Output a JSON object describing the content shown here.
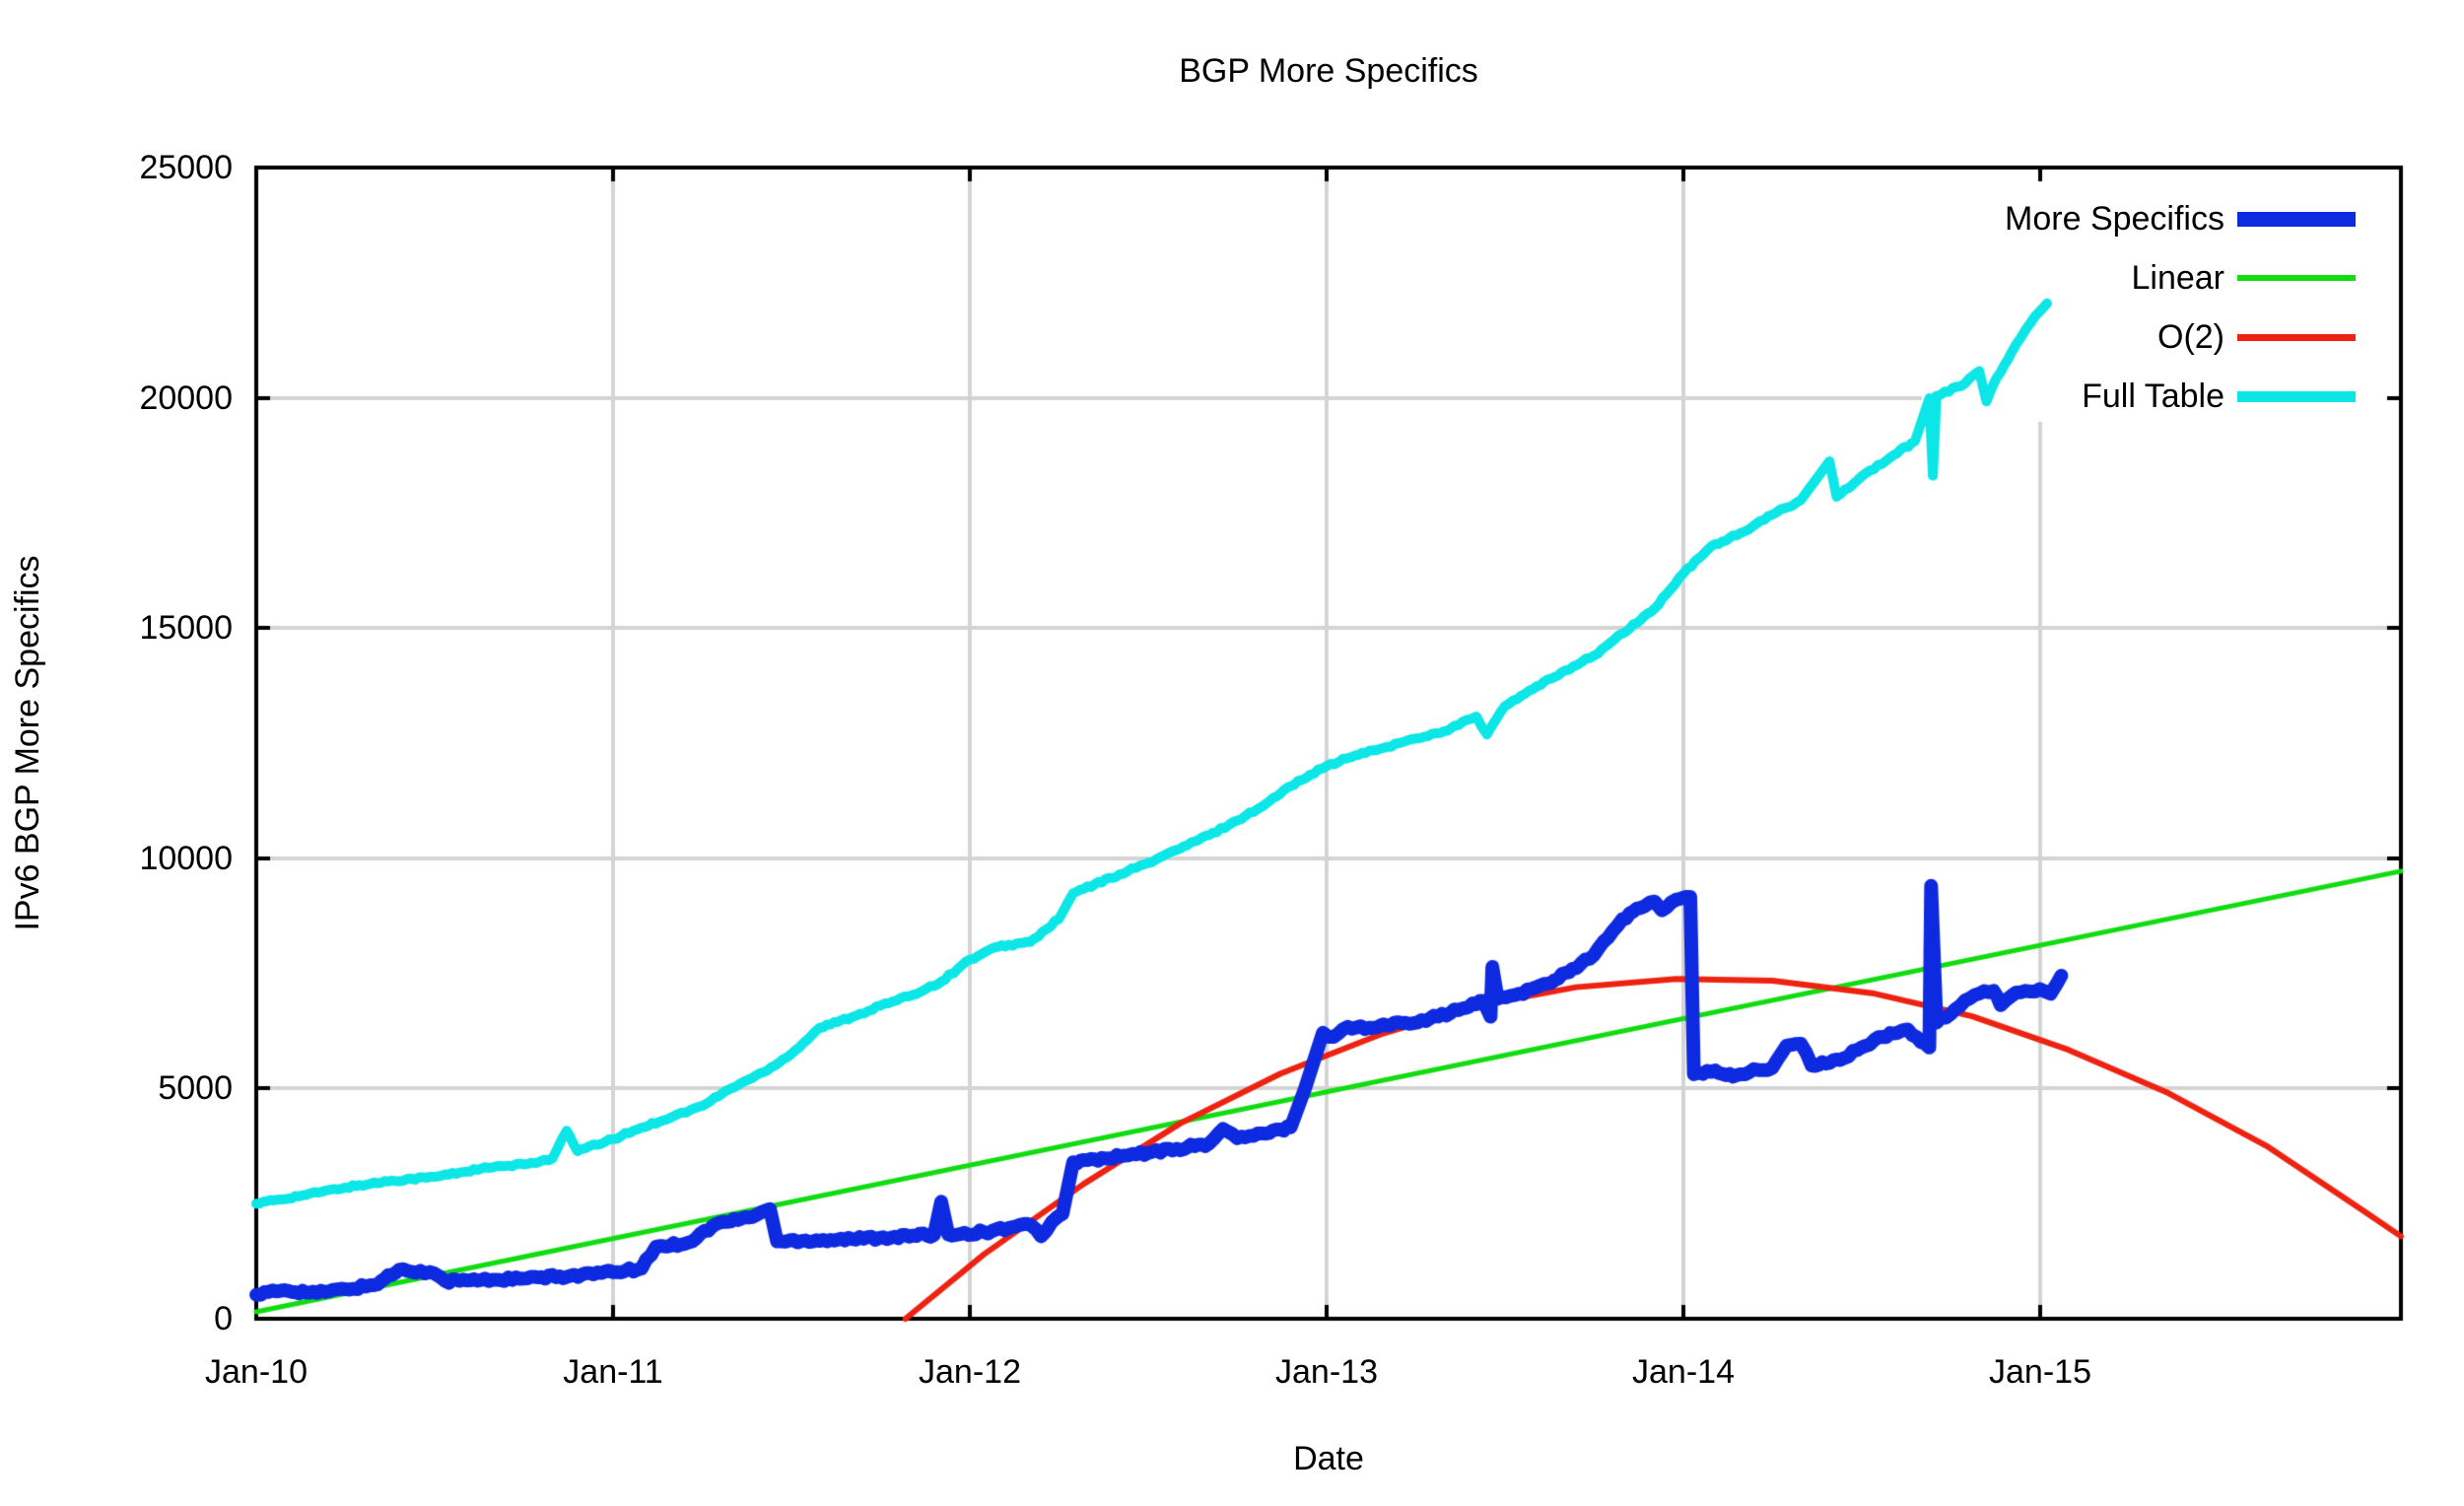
{
  "chart_data": {
    "type": "line",
    "title": "BGP More Specifics",
    "xlabel": "Date",
    "ylabel": "IPv6 BGP More Specifics",
    "grid": true,
    "grid_color": "#d4d4d4",
    "border_color": "#000000",
    "background_color": "#ffffff",
    "legend_position": "top-right",
    "axes": {
      "x_min": 2010.0,
      "x_max": 2016.012,
      "y_min": 0,
      "y_max": 25000
    },
    "x_tick_years": [
      2010,
      2011,
      2012,
      2013,
      2014,
      2015
    ],
    "x_tick_labels": [
      "Jan-10",
      "Jan-11",
      "Jan-12",
      "Jan-13",
      "Jan-14",
      "Jan-15"
    ],
    "y_tick_values": [
      0,
      5000,
      10000,
      15000,
      20000,
      25000
    ],
    "y_tick_labels": [
      "0",
      "5000",
      "10000",
      "15000",
      "20000",
      "25000"
    ],
    "legend": [
      {
        "label": "More Specifics",
        "series": "more_specifics"
      },
      {
        "label": "Linear",
        "series": "linear"
      },
      {
        "label": "O(2)",
        "series": "o2"
      },
      {
        "label": "Full Table",
        "series": "full_table"
      }
    ],
    "series": [
      {
        "name": "linear",
        "color": "#10dc10",
        "width": 5,
        "noise": 0,
        "points": [
          [
            2010.0,
            150
          ],
          [
            2016.012,
            9720
          ]
        ]
      },
      {
        "name": "o2",
        "color": "#ee2211",
        "width": 6,
        "noise": 0,
        "points": [
          [
            2011.82,
            0
          ],
          [
            2012.04,
            1400
          ],
          [
            2012.32,
            2930
          ],
          [
            2012.59,
            4240
          ],
          [
            2012.87,
            5320
          ],
          [
            2013.15,
            6170
          ],
          [
            2013.42,
            6800
          ],
          [
            2013.7,
            7200
          ],
          [
            2013.98,
            7380
          ],
          [
            2014.25,
            7340
          ],
          [
            2014.53,
            7070
          ],
          [
            2014.81,
            6570
          ],
          [
            2015.08,
            5840
          ],
          [
            2015.36,
            4900
          ],
          [
            2015.64,
            3730
          ],
          [
            2015.91,
            2330
          ],
          [
            2016.012,
            1790
          ]
        ]
      },
      {
        "name": "full_table",
        "color": "#0ce6e6",
        "width": 10,
        "noise": 28,
        "points": [
          [
            2010.0,
            2500
          ],
          [
            2010.13,
            2680
          ],
          [
            2010.25,
            2850
          ],
          [
            2010.38,
            3000
          ],
          [
            2010.5,
            3080
          ],
          [
            2010.63,
            3260
          ],
          [
            2010.75,
            3350
          ],
          [
            2010.83,
            3480
          ],
          [
            2010.87,
            4080
          ],
          [
            2010.9,
            3640
          ],
          [
            2011.0,
            3900
          ],
          [
            2011.08,
            4150
          ],
          [
            2011.17,
            4400
          ],
          [
            2011.25,
            4620
          ],
          [
            2011.33,
            5000
          ],
          [
            2011.42,
            5350
          ],
          [
            2011.5,
            5750
          ],
          [
            2011.58,
            6320
          ],
          [
            2011.67,
            6550
          ],
          [
            2011.75,
            6800
          ],
          [
            2011.83,
            7000
          ],
          [
            2011.92,
            7320
          ],
          [
            2012.0,
            7800
          ],
          [
            2012.08,
            8080
          ],
          [
            2012.17,
            8180
          ],
          [
            2012.25,
            8680
          ],
          [
            2012.29,
            9240
          ],
          [
            2012.42,
            9650
          ],
          [
            2012.5,
            9900
          ],
          [
            2012.58,
            10180
          ],
          [
            2012.67,
            10500
          ],
          [
            2012.75,
            10820
          ],
          [
            2012.83,
            11180
          ],
          [
            2012.92,
            11680
          ],
          [
            2013.0,
            12000
          ],
          [
            2013.08,
            12230
          ],
          [
            2013.17,
            12420
          ],
          [
            2013.25,
            12600
          ],
          [
            2013.33,
            12760
          ],
          [
            2013.42,
            13080
          ],
          [
            2013.45,
            12690
          ],
          [
            2013.5,
            13300
          ],
          [
            2013.58,
            13680
          ],
          [
            2013.67,
            14080
          ],
          [
            2013.75,
            14400
          ],
          [
            2013.83,
            14880
          ],
          [
            2013.92,
            15420
          ],
          [
            2014.0,
            16180
          ],
          [
            2014.08,
            16780
          ],
          [
            2014.17,
            17090
          ],
          [
            2014.25,
            17460
          ],
          [
            2014.33,
            17780
          ],
          [
            2014.41,
            18620
          ],
          [
            2014.43,
            17850
          ],
          [
            2014.5,
            18290
          ],
          [
            2014.58,
            18700
          ],
          [
            2014.65,
            19060
          ],
          [
            2014.69,
            19990
          ],
          [
            2014.7,
            18310
          ],
          [
            2014.71,
            20040
          ],
          [
            2014.79,
            20310
          ],
          [
            2014.83,
            20580
          ],
          [
            2014.85,
            19920
          ],
          [
            2014.87,
            20300
          ],
          [
            2014.92,
            20980
          ],
          [
            2014.96,
            21480
          ],
          [
            2015.0,
            21880
          ],
          [
            2015.02,
            22050
          ]
        ]
      },
      {
        "name": "more_specifics",
        "color": "#0e2ae0",
        "width": 14,
        "noise": 45,
        "points": [
          [
            2010.0,
            520
          ],
          [
            2010.08,
            620
          ],
          [
            2010.17,
            560
          ],
          [
            2010.25,
            640
          ],
          [
            2010.33,
            730
          ],
          [
            2010.4,
            1060
          ],
          [
            2010.46,
            1040
          ],
          [
            2010.5,
            980
          ],
          [
            2010.53,
            820
          ],
          [
            2010.63,
            840
          ],
          [
            2010.75,
            870
          ],
          [
            2010.88,
            930
          ],
          [
            2011.0,
            1010
          ],
          [
            2011.08,
            1090
          ],
          [
            2011.12,
            1560
          ],
          [
            2011.21,
            1650
          ],
          [
            2011.29,
            2060
          ],
          [
            2011.38,
            2200
          ],
          [
            2011.44,
            2380
          ],
          [
            2011.46,
            1680
          ],
          [
            2011.54,
            1700
          ],
          [
            2011.67,
            1730
          ],
          [
            2011.79,
            1780
          ],
          [
            2011.9,
            1820
          ],
          [
            2011.92,
            2540
          ],
          [
            2011.94,
            1830
          ],
          [
            2012.04,
            1880
          ],
          [
            2012.12,
            1990
          ],
          [
            2012.17,
            2040
          ],
          [
            2012.2,
            1790
          ],
          [
            2012.23,
            2100
          ],
          [
            2012.26,
            2280
          ],
          [
            2012.29,
            3400
          ],
          [
            2012.38,
            3480
          ],
          [
            2012.5,
            3600
          ],
          [
            2012.58,
            3690
          ],
          [
            2012.67,
            3800
          ],
          [
            2012.71,
            4120
          ],
          [
            2012.75,
            3920
          ],
          [
            2012.83,
            4020
          ],
          [
            2012.9,
            4160
          ],
          [
            2012.94,
            5000
          ],
          [
            2012.99,
            6210
          ],
          [
            2013.02,
            6120
          ],
          [
            2013.06,
            6340
          ],
          [
            2013.12,
            6320
          ],
          [
            2013.21,
            6420
          ],
          [
            2013.29,
            6520
          ],
          [
            2013.37,
            6700
          ],
          [
            2013.44,
            6900
          ],
          [
            2013.46,
            6560
          ],
          [
            2013.465,
            7640
          ],
          [
            2013.48,
            6950
          ],
          [
            2013.54,
            7060
          ],
          [
            2013.62,
            7280
          ],
          [
            2013.69,
            7600
          ],
          [
            2013.75,
            7900
          ],
          [
            2013.79,
            8280
          ],
          [
            2013.83,
            8680
          ],
          [
            2013.88,
            8920
          ],
          [
            2013.92,
            9060
          ],
          [
            2013.94,
            8870
          ],
          [
            2013.98,
            9100
          ],
          [
            2014.02,
            9160
          ],
          [
            2014.03,
            5310
          ],
          [
            2014.08,
            5360
          ],
          [
            2014.15,
            5290
          ],
          [
            2014.21,
            5400
          ],
          [
            2014.25,
            5450
          ],
          [
            2014.29,
            5930
          ],
          [
            2014.33,
            5970
          ],
          [
            2014.36,
            5500
          ],
          [
            2014.44,
            5620
          ],
          [
            2014.5,
            5890
          ],
          [
            2014.56,
            6120
          ],
          [
            2014.63,
            6280
          ],
          [
            2014.69,
            5890
          ],
          [
            2014.695,
            9400
          ],
          [
            2014.71,
            6430
          ],
          [
            2014.75,
            6620
          ],
          [
            2014.79,
            6910
          ],
          [
            2014.83,
            7060
          ],
          [
            2014.87,
            7120
          ],
          [
            2014.89,
            6810
          ],
          [
            2014.92,
            7010
          ],
          [
            2014.96,
            7120
          ],
          [
            2015.0,
            7160
          ],
          [
            2015.03,
            7060
          ],
          [
            2015.06,
            7450
          ]
        ]
      }
    ]
  }
}
